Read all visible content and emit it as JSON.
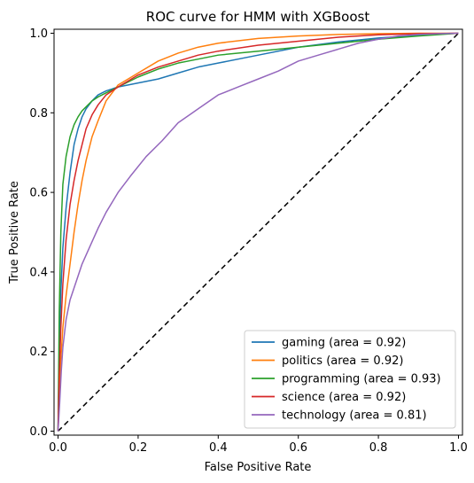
{
  "chart_data": {
    "type": "line",
    "title": "ROC curve for HMM with XGBoost",
    "xlabel": "False Positive Rate",
    "ylabel": "True Positive Rate",
    "xlim": [
      -0.01,
      1.01
    ],
    "ylim": [
      -0.01,
      1.01
    ],
    "x_ticks": [
      0.0,
      0.2,
      0.4,
      0.6,
      0.8,
      1.0
    ],
    "x_tick_labels": [
      "0.0",
      "0.2",
      "0.4",
      "0.6",
      "0.8",
      "1.0"
    ],
    "y_ticks": [
      0.0,
      0.2,
      0.4,
      0.6,
      0.8,
      1.0
    ],
    "y_tick_labels": [
      "0.0",
      "0.2",
      "0.4",
      "0.6",
      "0.8",
      "1.0"
    ],
    "grid": false,
    "legend_position": "lower-right",
    "series": [
      {
        "name": "gaming (area = 0.92)",
        "color": "#1f77b4",
        "x": [
          0.0,
          0.003,
          0.007,
          0.012,
          0.02,
          0.03,
          0.04,
          0.05,
          0.06,
          0.07,
          0.085,
          0.1,
          0.12,
          0.15,
          0.2,
          0.25,
          0.3,
          0.35,
          0.4,
          0.5,
          0.6,
          0.7,
          0.8,
          0.9,
          1.0
        ],
        "y": [
          0.0,
          0.2,
          0.35,
          0.46,
          0.56,
          0.65,
          0.72,
          0.76,
          0.79,
          0.81,
          0.83,
          0.845,
          0.855,
          0.865,
          0.875,
          0.885,
          0.9,
          0.915,
          0.925,
          0.945,
          0.965,
          0.978,
          0.988,
          0.995,
          1.0
        ]
      },
      {
        "name": "politics (area = 0.92)",
        "color": "#ff7f0e",
        "x": [
          0.0,
          0.003,
          0.007,
          0.012,
          0.02,
          0.03,
          0.04,
          0.05,
          0.06,
          0.07,
          0.085,
          0.1,
          0.12,
          0.15,
          0.2,
          0.25,
          0.3,
          0.35,
          0.4,
          0.5,
          0.6,
          0.7,
          0.8,
          0.9,
          1.0
        ],
        "y": [
          0.0,
          0.09,
          0.18,
          0.26,
          0.34,
          0.42,
          0.5,
          0.57,
          0.63,
          0.68,
          0.74,
          0.78,
          0.83,
          0.87,
          0.9,
          0.93,
          0.95,
          0.965,
          0.975,
          0.987,
          0.993,
          0.997,
          0.999,
          1.0,
          1.0
        ]
      },
      {
        "name": "programming (area = 0.93)",
        "color": "#2ca02c",
        "x": [
          0.0,
          0.003,
          0.007,
          0.012,
          0.02,
          0.03,
          0.04,
          0.05,
          0.06,
          0.07,
          0.085,
          0.1,
          0.12,
          0.15,
          0.2,
          0.25,
          0.3,
          0.35,
          0.4,
          0.5,
          0.6,
          0.7,
          0.8,
          0.9,
          1.0
        ],
        "y": [
          0.0,
          0.3,
          0.5,
          0.62,
          0.69,
          0.74,
          0.77,
          0.79,
          0.805,
          0.815,
          0.83,
          0.84,
          0.85,
          0.865,
          0.89,
          0.91,
          0.925,
          0.935,
          0.945,
          0.955,
          0.965,
          0.975,
          0.985,
          0.993,
          1.0
        ]
      },
      {
        "name": "science (area = 0.92)",
        "color": "#d62728",
        "x": [
          0.0,
          0.003,
          0.007,
          0.012,
          0.02,
          0.03,
          0.04,
          0.05,
          0.06,
          0.07,
          0.085,
          0.1,
          0.12,
          0.15,
          0.2,
          0.25,
          0.3,
          0.35,
          0.4,
          0.5,
          0.6,
          0.7,
          0.8,
          0.9,
          1.0
        ],
        "y": [
          0.0,
          0.14,
          0.26,
          0.37,
          0.48,
          0.57,
          0.63,
          0.68,
          0.72,
          0.76,
          0.795,
          0.82,
          0.845,
          0.865,
          0.895,
          0.915,
          0.93,
          0.945,
          0.955,
          0.97,
          0.98,
          0.99,
          0.996,
          0.999,
          1.0
        ]
      },
      {
        "name": "technology (area = 0.81)",
        "color": "#9467bd",
        "x": [
          0.0,
          0.004,
          0.008,
          0.012,
          0.02,
          0.03,
          0.04,
          0.05,
          0.06,
          0.08,
          0.1,
          0.12,
          0.15,
          0.18,
          0.22,
          0.26,
          0.3,
          0.35,
          0.4,
          0.45,
          0.5,
          0.55,
          0.6,
          0.65,
          0.7,
          0.75,
          0.8,
          0.85,
          0.9,
          0.95,
          1.0
        ],
        "y": [
          0.0,
          0.07,
          0.15,
          0.21,
          0.28,
          0.33,
          0.36,
          0.39,
          0.42,
          0.465,
          0.51,
          0.55,
          0.6,
          0.64,
          0.69,
          0.73,
          0.775,
          0.81,
          0.845,
          0.865,
          0.885,
          0.905,
          0.93,
          0.945,
          0.96,
          0.975,
          0.985,
          0.993,
          0.997,
          0.999,
          1.0
        ]
      }
    ],
    "reference_line": {
      "x": [
        0.0,
        1.0
      ],
      "y": [
        0.0,
        1.0
      ],
      "color": "#000000",
      "style": "dashed"
    }
  }
}
